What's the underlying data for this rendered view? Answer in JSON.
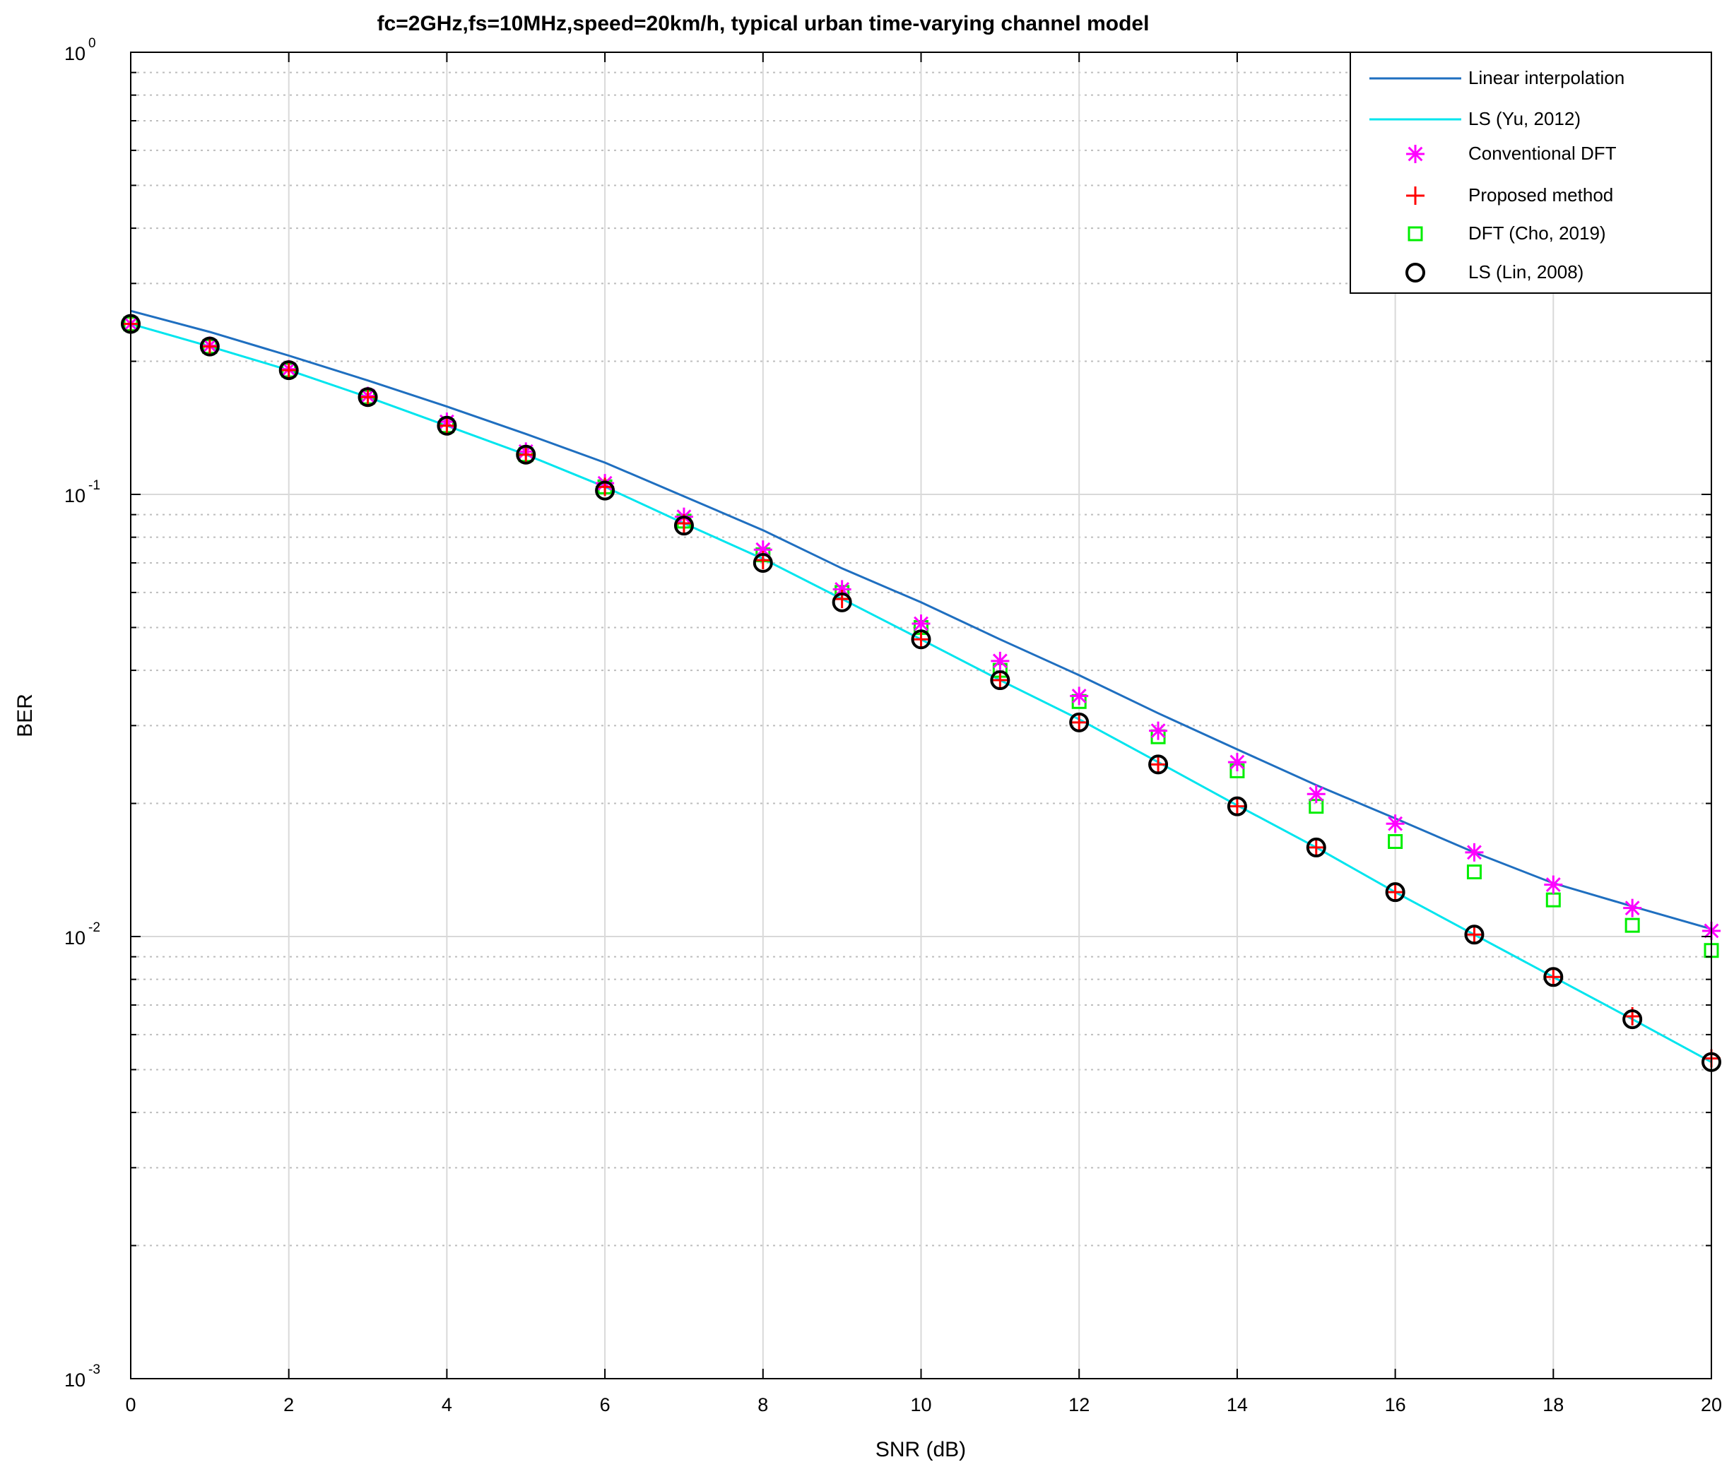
{
  "chart_data": {
    "type": "line",
    "title": "fc=2GHz,fs=10MHz,speed=20km/h, typical urban time-varying channel model",
    "xlabel": "SNR (dB)",
    "ylabel": "BER",
    "xlim": [
      0,
      20
    ],
    "ylim": [
      0.001,
      1
    ],
    "yscale": "log",
    "grid": true,
    "legend_position": "top-right",
    "x_ticks": [
      "0",
      "2",
      "4",
      "6",
      "8",
      "10",
      "12",
      "14",
      "16",
      "18",
      "20"
    ],
    "y_ticks": [
      {
        "base": "10",
        "exp": "0",
        "value": 1
      },
      {
        "base": "10",
        "exp": "-1",
        "value": 0.1
      },
      {
        "base": "10",
        "exp": "-2",
        "value": 0.01
      },
      {
        "base": "10",
        "exp": "-3",
        "value": 0.001
      }
    ],
    "x": [
      0,
      1,
      2,
      3,
      4,
      5,
      6,
      7,
      8,
      9,
      10,
      11,
      12,
      13,
      14,
      15,
      16,
      17,
      18,
      19,
      20
    ],
    "series": [
      {
        "name": "Linear interpolation",
        "style": "line",
        "color": "#1f6fc0",
        "values": [
          0.26,
          0.233,
          0.206,
          0.181,
          0.158,
          0.137,
          0.118,
          0.099,
          0.083,
          0.068,
          0.057,
          0.047,
          0.039,
          0.032,
          0.0265,
          0.022,
          0.0185,
          0.0155,
          0.0132,
          0.0117,
          0.0104
        ]
      },
      {
        "name": "LS (Yu, 2012)",
        "style": "line",
        "color": "#00e5ee",
        "values": [
          0.243,
          0.216,
          0.191,
          0.166,
          0.143,
          0.123,
          0.104,
          0.086,
          0.0715,
          0.058,
          0.047,
          0.038,
          0.031,
          0.0248,
          0.0198,
          0.0159,
          0.0126,
          0.0101,
          0.0081,
          0.0065,
          0.0052
        ]
      },
      {
        "name": "Conventional DFT",
        "style": "marker",
        "marker": "asterisk",
        "color": "#ff00ff",
        "values": [
          0.243,
          0.217,
          0.192,
          0.167,
          0.146,
          0.125,
          0.106,
          0.089,
          0.075,
          0.061,
          0.051,
          0.042,
          0.035,
          0.0292,
          0.0248,
          0.021,
          0.018,
          0.0155,
          0.0131,
          0.0116,
          0.0103
        ]
      },
      {
        "name": "Proposed method",
        "style": "marker",
        "marker": "plus",
        "color": "#ff0000",
        "values": [
          0.243,
          0.216,
          0.191,
          0.166,
          0.143,
          0.123,
          0.104,
          0.086,
          0.071,
          0.058,
          0.047,
          0.038,
          0.0305,
          0.0245,
          0.0197,
          0.0159,
          0.0126,
          0.0101,
          0.0081,
          0.0066,
          0.0053
        ]
      },
      {
        "name": "DFT (Cho, 2019)",
        "style": "marker",
        "marker": "square",
        "color": "#00ee00",
        "values": [
          0.243,
          0.216,
          0.191,
          0.166,
          0.143,
          0.123,
          0.104,
          0.087,
          0.073,
          0.06,
          0.05,
          0.04,
          0.034,
          0.0283,
          0.0237,
          0.0197,
          0.0164,
          0.014,
          0.0121,
          0.0106,
          0.0093
        ]
      },
      {
        "name": "LS (Lin, 2008)",
        "style": "marker",
        "marker": "circle",
        "color": "#000000",
        "values": [
          0.243,
          0.216,
          0.191,
          0.166,
          0.143,
          0.123,
          0.102,
          0.085,
          0.07,
          0.057,
          0.047,
          0.038,
          0.0305,
          0.0245,
          0.0197,
          0.0159,
          0.0126,
          0.0101,
          0.0081,
          0.0065,
          0.0052
        ]
      }
    ]
  }
}
